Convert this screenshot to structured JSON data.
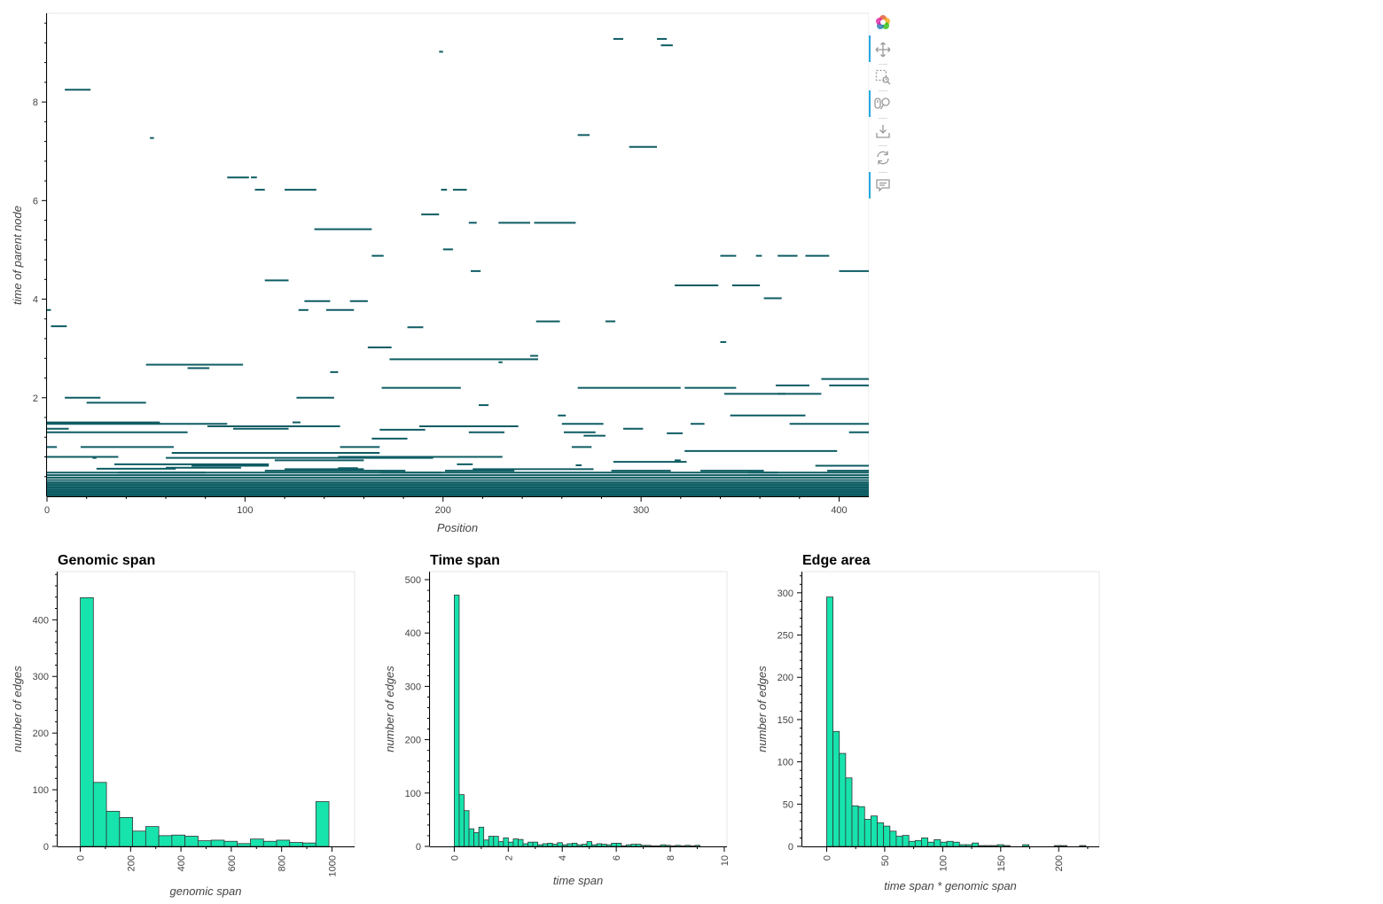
{
  "colors": {
    "edge": "#0d5c63",
    "bar_fill": "#17e3ad",
    "bar_stroke": "#333333",
    "tool_active": "#26aae1"
  },
  "toolbar": {
    "tools": [
      {
        "name": "bokeh-logo",
        "icon": "bokeh-logo-icon",
        "active": false
      },
      {
        "name": "pan-tool",
        "icon": "pan-icon",
        "active": true
      },
      {
        "name": "box-zoom-tool",
        "icon": "box-zoom-icon",
        "active": false
      },
      {
        "name": "wheel-zoom-tool",
        "icon": "wheel-zoom-icon",
        "active": true
      },
      {
        "name": "save-tool",
        "icon": "save-icon",
        "active": false
      },
      {
        "name": "reset-tool",
        "icon": "reset-icon",
        "active": false
      },
      {
        "name": "hover-tool",
        "icon": "hover-icon",
        "active": true
      }
    ]
  },
  "chart_data": [
    {
      "id": "edges",
      "type": "segments",
      "title": "",
      "xlabel": "Position",
      "ylabel": "time of parent node",
      "xlim": [
        0,
        415
      ],
      "ylim": [
        0,
        9.8
      ],
      "xticks": [
        0,
        100,
        200,
        300,
        400
      ],
      "yticks": [
        2,
        4,
        6,
        8
      ],
      "segments": [
        [
          286,
          291,
          9.28
        ],
        [
          308,
          313,
          9.28
        ],
        [
          310,
          316,
          9.15
        ],
        [
          198,
          200,
          9.02
        ],
        [
          9,
          22,
          8.25
        ],
        [
          52,
          54,
          7.27
        ],
        [
          268,
          274,
          7.33
        ],
        [
          294,
          308,
          7.09
        ],
        [
          91,
          102,
          6.47
        ],
        [
          103,
          106,
          6.47
        ],
        [
          105,
          110,
          6.22
        ],
        [
          120,
          136,
          6.22
        ],
        [
          199,
          202,
          6.22
        ],
        [
          205,
          212,
          6.22
        ],
        [
          189,
          198,
          5.72
        ],
        [
          213,
          217,
          5.55
        ],
        [
          228,
          244,
          5.55
        ],
        [
          246,
          267,
          5.55
        ],
        [
          135,
          164,
          5.42
        ],
        [
          200,
          205,
          5.01
        ],
        [
          164,
          170,
          4.88
        ],
        [
          340,
          348,
          4.88
        ],
        [
          358,
          361,
          4.88
        ],
        [
          369,
          379,
          4.88
        ],
        [
          383,
          395,
          4.88
        ],
        [
          214,
          219,
          4.57
        ],
        [
          400,
          415,
          4.57
        ],
        [
          110,
          122,
          4.38
        ],
        [
          317,
          339,
          4.28
        ],
        [
          346,
          360,
          4.28
        ],
        [
          130,
          143,
          3.96
        ],
        [
          153,
          162,
          3.96
        ],
        [
          362,
          371,
          4.02
        ],
        [
          0,
          2,
          3.78
        ],
        [
          127,
          132,
          3.78
        ],
        [
          141,
          155,
          3.78
        ],
        [
          247,
          259,
          3.55
        ],
        [
          282,
          287,
          3.55
        ],
        [
          182,
          190,
          3.43
        ],
        [
          2,
          10,
          3.45
        ],
        [
          340,
          343,
          3.13
        ],
        [
          162,
          174,
          3.02
        ],
        [
          244,
          248,
          2.85
        ],
        [
          173,
          248,
          2.78
        ],
        [
          50,
          99,
          2.67
        ],
        [
          228,
          230,
          2.72
        ],
        [
          71,
          82,
          2.6
        ],
        [
          143,
          147,
          2.52
        ],
        [
          9,
          27,
          2.0
        ],
        [
          20,
          50,
          1.9
        ],
        [
          126,
          145,
          2.0
        ],
        [
          169,
          209,
          2.2
        ],
        [
          268,
          320,
          2.2
        ],
        [
          322,
          348,
          2.2
        ],
        [
          342,
          391,
          2.08
        ],
        [
          369,
          373,
          2.08
        ],
        [
          368,
          385,
          2.25
        ],
        [
          395,
          415,
          2.25
        ],
        [
          391,
          415,
          2.38
        ],
        [
          218,
          223,
          1.85
        ],
        [
          258,
          262,
          1.64
        ],
        [
          345,
          383,
          1.64
        ],
        [
          0,
          57,
          1.5
        ],
        [
          0,
          91,
          1.47
        ],
        [
          124,
          128,
          1.5
        ],
        [
          260,
          281,
          1.47
        ],
        [
          375,
          415,
          1.47
        ],
        [
          325,
          332,
          1.47
        ],
        [
          81,
          148,
          1.42
        ],
        [
          188,
          238,
          1.42
        ],
        [
          0,
          11,
          1.37
        ],
        [
          0,
          71,
          1.3
        ],
        [
          94,
          122,
          1.37
        ],
        [
          168,
          191,
          1.35
        ],
        [
          213,
          231,
          1.3
        ],
        [
          261,
          277,
          1.3
        ],
        [
          291,
          301,
          1.37
        ],
        [
          313,
          321,
          1.28
        ],
        [
          405,
          415,
          1.3
        ],
        [
          271,
          282,
          1.23
        ],
        [
          164,
          182,
          1.17
        ],
        [
          0,
          5,
          1.0
        ],
        [
          17,
          64,
          1.0
        ],
        [
          63,
          168,
          0.88
        ],
        [
          148,
          168,
          1.0
        ],
        [
          265,
          275,
          1.0
        ],
        [
          322,
          399,
          0.92
        ],
        [
          0,
          36,
          0.8
        ],
        [
          60,
          195,
          0.78
        ],
        [
          147,
          230,
          0.8
        ],
        [
          23,
          25,
          0.78
        ],
        [
          34,
          112,
          0.65
        ],
        [
          73,
          112,
          0.62
        ],
        [
          115,
          160,
          0.73
        ],
        [
          207,
          215,
          0.65
        ],
        [
          267,
          270,
          0.63
        ],
        [
          286,
          323,
          0.7
        ],
        [
          317,
          320,
          0.73
        ],
        [
          388,
          415,
          0.62
        ],
        [
          147,
          157,
          0.57
        ],
        [
          25,
          65,
          0.56
        ],
        [
          60,
          98,
          0.58
        ],
        [
          120,
          160,
          0.55
        ],
        [
          215,
          276,
          0.55
        ],
        [
          0,
          415,
          0.48
        ],
        [
          0,
          415,
          0.43
        ],
        [
          0,
          415,
          0.38
        ],
        [
          0,
          415,
          0.33
        ],
        [
          0,
          415,
          0.28
        ],
        [
          0,
          415,
          0.23
        ],
        [
          0,
          415,
          0.18
        ],
        [
          0,
          415,
          0.13
        ],
        [
          0,
          415,
          0.09
        ],
        [
          0,
          415,
          0.05
        ],
        [
          0,
          415,
          0.02
        ],
        [
          0,
          415,
          0.0
        ],
        [
          354,
          369,
          0.48
        ],
        [
          394,
          415,
          0.52
        ],
        [
          330,
          362,
          0.52
        ],
        [
          201,
          236,
          0.52
        ],
        [
          36,
          80,
          0.48
        ],
        [
          168,
          199,
          0.48
        ],
        [
          285,
          315,
          0.52
        ],
        [
          110,
          181,
          0.52
        ]
      ]
    },
    {
      "id": "genomic",
      "type": "bar",
      "title": "Genomic span",
      "xlabel": "genomic span",
      "ylabel": "number of edges",
      "xlim": [
        -90,
        1090
      ],
      "ylim": [
        0,
        485
      ],
      "xticks": [
        0,
        200,
        400,
        600,
        800,
        1000
      ],
      "yticks": [
        0,
        100,
        200,
        300,
        400
      ],
      "bin_width": 52,
      "x_start": 0,
      "values": [
        439,
        113,
        62,
        51,
        27,
        35,
        19,
        20,
        18,
        10,
        11,
        9,
        5,
        13,
        9,
        11,
        7,
        6,
        79
      ]
    },
    {
      "id": "time",
      "type": "bar",
      "title": "Time span",
      "xlabel": "time span",
      "ylabel": "number of edges",
      "xlim": [
        -0.9,
        10.1
      ],
      "ylim": [
        0,
        515
      ],
      "xticks": [
        0,
        2,
        4,
        6,
        8,
        10
      ],
      "yticks": [
        0,
        100,
        200,
        300,
        400,
        500
      ],
      "bin_width": 0.182,
      "x_start": 0,
      "values": [
        471,
        97,
        67,
        33,
        26,
        36,
        12,
        19,
        19,
        9,
        16,
        8,
        14,
        13,
        5,
        8,
        8,
        3,
        5,
        6,
        4,
        7,
        3,
        5,
        6,
        3,
        4,
        9,
        3,
        5,
        4,
        3,
        6,
        6,
        1,
        3,
        4,
        4,
        2,
        2,
        1,
        1,
        3,
        2,
        1,
        2,
        1,
        2,
        1,
        2
      ]
    },
    {
      "id": "area",
      "type": "bar",
      "title": "Edge area",
      "xlabel": "time span * genomic span",
      "ylabel": "number of edges",
      "xlim": [
        -21,
        235
      ],
      "ylim": [
        0,
        325
      ],
      "xticks": [
        0,
        50,
        100,
        150,
        200
      ],
      "yticks": [
        0,
        50,
        100,
        150,
        200,
        250,
        300
      ],
      "bin_width": 5.45,
      "x_start": 0,
      "values": [
        295,
        136,
        110,
        81,
        48,
        47,
        32,
        36,
        28,
        24,
        18,
        12,
        13,
        6,
        7,
        10,
        5,
        8,
        5,
        6,
        5,
        2,
        2,
        4,
        1,
        1,
        1,
        2,
        1,
        0,
        0,
        2,
        0,
        0,
        0,
        0,
        1,
        1,
        0,
        0,
        1
      ]
    }
  ]
}
